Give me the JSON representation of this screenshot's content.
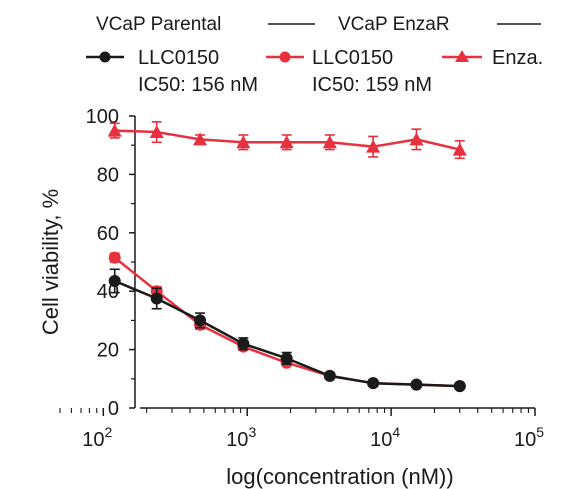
{
  "colors": {
    "parental": "#1a1a1a",
    "enzar": "#e8313f",
    "axis": "#1a1a1a"
  },
  "chart_data": {
    "type": "line",
    "xlabel": "log(concentration (nM))",
    "ylabel": "Cell viability, %",
    "x_scale": "log",
    "xlim": [
      50,
      100000
    ],
    "ylim": [
      0,
      100
    ],
    "x_ticks": [
      {
        "value": 100,
        "base": "10",
        "exp": "2"
      },
      {
        "value": 1000,
        "base": "10",
        "exp": "3"
      },
      {
        "value": 10000,
        "base": "10",
        "exp": "4"
      },
      {
        "value": 100000,
        "base": "10",
        "exp": "5"
      }
    ],
    "y_ticks": [
      "0",
      "20",
      "40",
      "60",
      "80",
      "100"
    ],
    "legend": {
      "groups": [
        "VCaP Parental",
        "VCaP EnzaR"
      ],
      "entries": [
        {
          "label": "LLC0150",
          "sub": "IC50: 156 nM"
        },
        {
          "label": "LLC0150",
          "sub": "IC50: 159 nM"
        },
        {
          "label": "Enza.",
          "sub": ""
        }
      ]
    },
    "x": [
      120,
      235,
      470,
      940,
      1880,
      3750,
      7500,
      15000,
      30000
    ],
    "series": [
      {
        "key": "parental_llc",
        "marker": "circle",
        "values": [
          43.5,
          37.5,
          30,
          22,
          17,
          11,
          8.5,
          8,
          7.5
        ],
        "errors": [
          4,
          3.5,
          2.5,
          2,
          2,
          1,
          1,
          0.8,
          0.8
        ]
      },
      {
        "key": "enzar_llc",
        "marker": "circle",
        "values": [
          51.5,
          40,
          28.5,
          21,
          15.5,
          11,
          8.5,
          8,
          7.5
        ],
        "errors": [
          1.5,
          1.5,
          1.5,
          1,
          1,
          0.8,
          0.8,
          0.8,
          0.8
        ]
      },
      {
        "key": "enzar_enza",
        "marker": "triangle",
        "values": [
          95,
          94.5,
          92,
          91,
          91,
          91,
          89.5,
          92,
          88.5
        ],
        "errors": [
          2.5,
          3.5,
          1.5,
          2.5,
          2.5,
          2.5,
          3.5,
          3.5,
          3
        ]
      }
    ]
  }
}
